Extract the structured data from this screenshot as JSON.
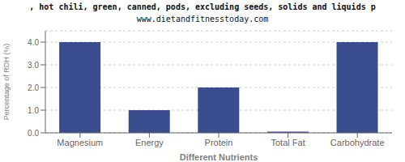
{
  "chart_data": {
    "type": "bar",
    "title": ", hot chili, green, canned, pods, excluding seeds, solids and liquids p",
    "subtitle": "www.dietandfitnesstoday.com",
    "categories": [
      "Magnesium",
      "Energy",
      "Protein",
      "Total Fat",
      "Carbohydrate"
    ],
    "values": [
      4.0,
      1.0,
      2.0,
      0.05,
      4.0
    ],
    "color": "#3a4d8f",
    "xlabel": "Different Nutrients",
    "ylabel": "Percentage of RDH (%)",
    "ylim": [
      0,
      4.5
    ],
    "yticks": [
      {
        "value": 0.0,
        "label": "0.0"
      },
      {
        "value": 1.0,
        "label": "1.0"
      },
      {
        "value": 2.0,
        "label": "2.0"
      },
      {
        "value": 3.0,
        "label": "3.0"
      },
      {
        "value": 4.0,
        "label": "4.0"
      }
    ],
    "grid": true
  }
}
